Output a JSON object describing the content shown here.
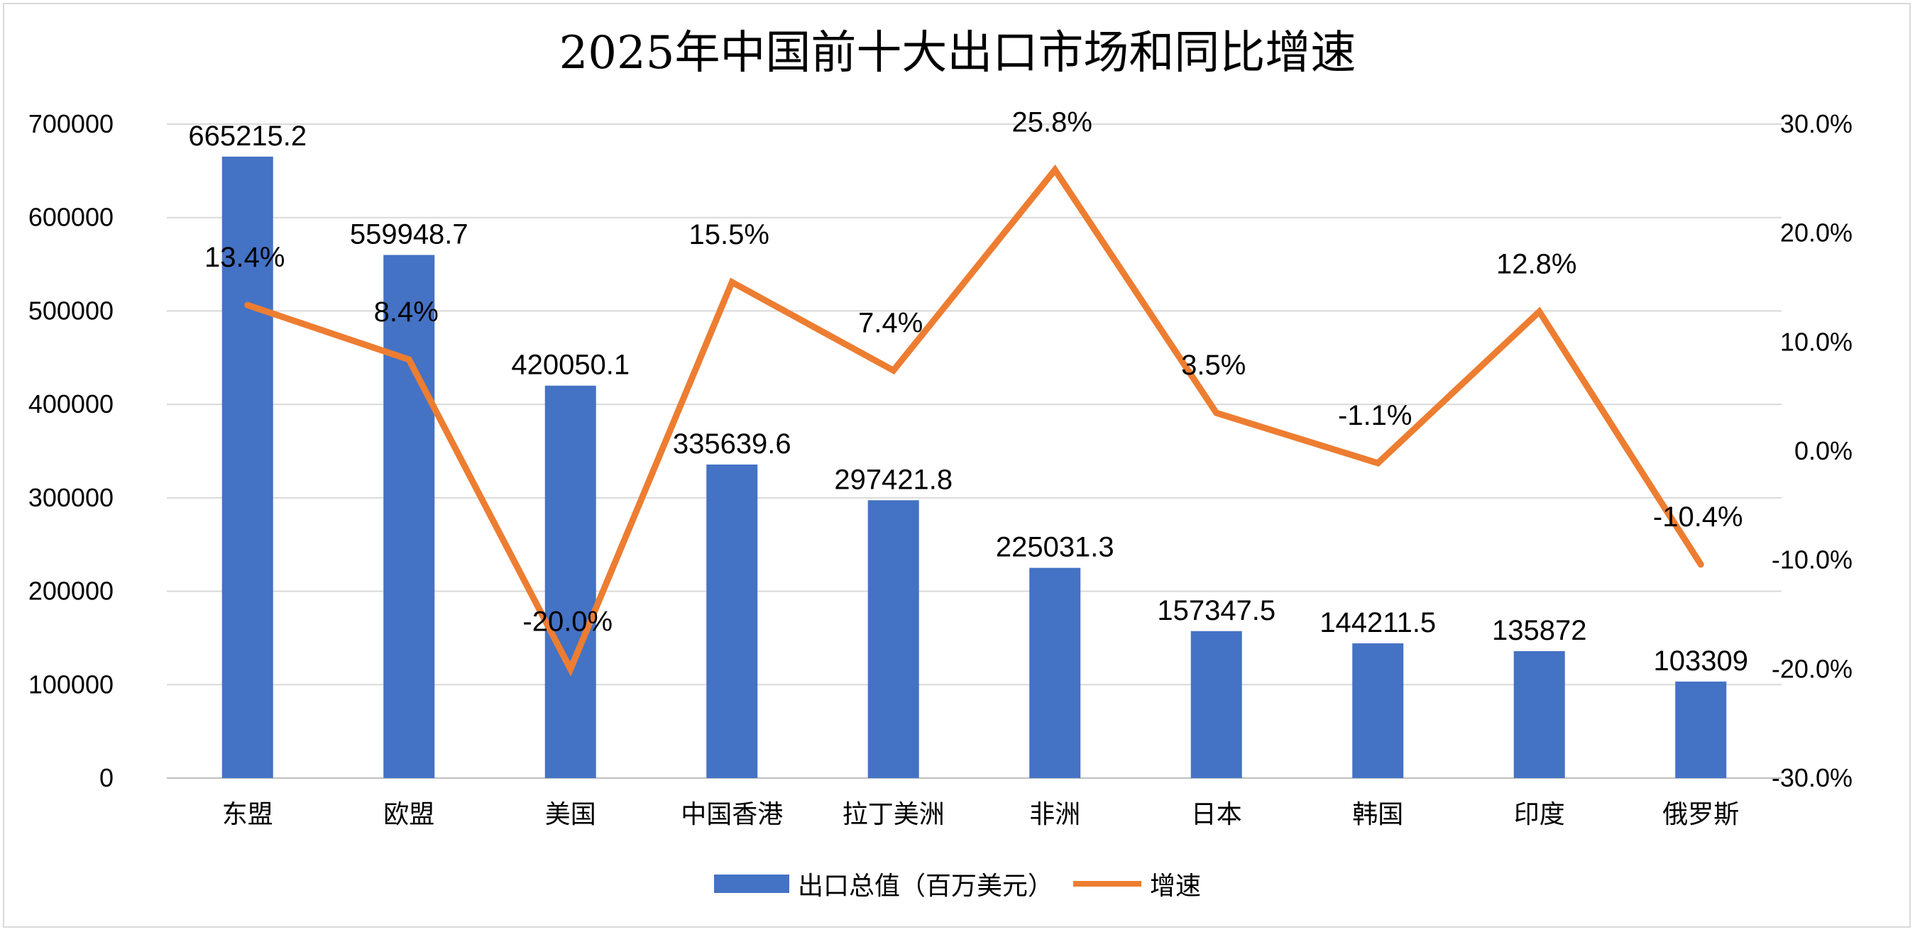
{
  "chart_data": {
    "type": "bar",
    "title": "2025年中国前十大出口市场和同比增速",
    "categories": [
      "东盟",
      "欧盟",
      "美国",
      "中国香港",
      "拉丁美洲",
      "非洲",
      "日本",
      "韩国",
      "印度",
      "俄罗斯"
    ],
    "series": [
      {
        "name": "出口总值（百万美元）",
        "type": "bar",
        "axis": "left",
        "color": "#4472c4",
        "values": [
          665215.2,
          559948.7,
          420050.1,
          335639.6,
          297421.8,
          225031.3,
          157347.5,
          144211.5,
          135872,
          103309
        ],
        "labels": [
          "665215.2",
          "559948.7",
          "420050.1",
          "335639.6",
          "297421.8",
          "225031.3",
          "157347.5",
          "144211.5",
          "135872",
          "103309"
        ]
      },
      {
        "name": "增速",
        "type": "line",
        "axis": "right",
        "color": "#ed7d31",
        "values": [
          13.4,
          8.4,
          -20.0,
          15.5,
          7.4,
          25.8,
          3.5,
          -1.1,
          12.8,
          -10.4
        ],
        "labels": [
          "13.4%",
          "8.4%",
          "-20.0%",
          "15.5%",
          "7.4%",
          "25.8%",
          "3.5%",
          "-1.1%",
          "12.8%",
          "-10.4%"
        ]
      }
    ],
    "y_left": {
      "ylim": [
        0,
        700000
      ],
      "ticks": [
        0,
        100000,
        200000,
        300000,
        400000,
        500000,
        600000,
        700000
      ],
      "tick_labels": [
        "0",
        "100000",
        "200000",
        "300000",
        "400000",
        "500000",
        "600000",
        "700000"
      ]
    },
    "y_right": {
      "ylim": [
        -30,
        30
      ],
      "ticks": [
        -30,
        -20,
        -10,
        0,
        10,
        20,
        30
      ],
      "tick_labels": [
        "-30.0%",
        "-20.0%",
        "-10.0%",
        "0.0%",
        "10.0%",
        "20.0%",
        "30.0%"
      ]
    },
    "grid": true,
    "legend_position": "bottom"
  }
}
